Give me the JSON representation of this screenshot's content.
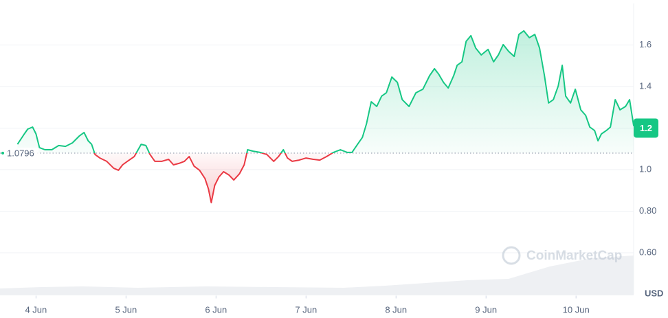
{
  "chart_data": {
    "type": "line",
    "x": [
      3.794,
      3.87,
      3.908,
      3.962,
      4.0,
      4.038,
      4.099,
      4.176,
      4.252,
      4.328,
      4.405,
      4.481,
      4.534,
      4.58,
      4.618,
      4.656,
      4.71,
      4.786,
      4.863,
      4.916,
      4.962,
      5.015,
      5.092,
      5.168,
      5.221,
      5.267,
      5.321,
      5.397,
      5.473,
      5.527,
      5.588,
      5.649,
      5.702,
      5.756,
      5.817,
      5.878,
      5.916,
      5.947,
      5.985,
      6.031,
      6.084,
      6.145,
      6.198,
      6.26,
      6.313,
      6.351,
      6.412,
      6.489,
      6.565,
      6.641,
      6.695,
      6.748,
      6.794,
      6.847,
      6.924,
      7.0,
      7.076,
      7.153,
      7.229,
      7.305,
      7.382,
      7.458,
      7.511,
      7.573,
      7.626,
      7.672,
      7.725,
      7.786,
      7.84,
      7.893,
      7.954,
      8.015,
      8.069,
      8.145,
      8.221,
      8.298,
      8.374,
      8.427,
      8.473,
      8.527,
      8.58,
      8.641,
      8.679,
      8.733,
      8.779,
      8.832,
      8.885,
      8.947,
      9.023,
      9.084,
      9.137,
      9.191,
      9.252,
      9.313,
      9.366,
      9.42,
      9.481,
      9.542,
      9.595,
      9.649,
      9.695,
      9.748,
      9.802,
      9.847,
      9.885,
      9.939,
      9.992,
      10.053,
      10.107,
      10.153,
      10.206,
      10.244,
      10.282,
      10.336,
      10.382,
      10.435,
      10.489,
      10.55,
      10.595,
      10.641
    ],
    "values": [
      1.122,
      1.172,
      1.195,
      1.205,
      1.172,
      1.106,
      1.096,
      1.096,
      1.116,
      1.112,
      1.129,
      1.162,
      1.179,
      1.139,
      1.122,
      1.073,
      1.056,
      1.04,
      1.007,
      0.997,
      1.023,
      1.04,
      1.063,
      1.122,
      1.116,
      1.073,
      1.04,
      1.04,
      1.05,
      1.023,
      1.03,
      1.04,
      1.063,
      1.017,
      0.997,
      0.957,
      0.907,
      0.841,
      0.924,
      0.964,
      0.99,
      0.974,
      0.95,
      0.98,
      1.023,
      1.096,
      1.089,
      1.083,
      1.073,
      1.04,
      1.063,
      1.096,
      1.056,
      1.04,
      1.046,
      1.056,
      1.05,
      1.046,
      1.063,
      1.083,
      1.096,
      1.083,
      1.083,
      1.122,
      1.155,
      1.221,
      1.327,
      1.304,
      1.354,
      1.37,
      1.446,
      1.42,
      1.337,
      1.304,
      1.37,
      1.387,
      1.453,
      1.486,
      1.46,
      1.42,
      1.393,
      1.453,
      1.502,
      1.519,
      1.618,
      1.645,
      1.585,
      1.552,
      1.579,
      1.519,
      1.552,
      1.602,
      1.569,
      1.545,
      1.651,
      1.668,
      1.635,
      1.651,
      1.585,
      1.453,
      1.321,
      1.337,
      1.403,
      1.502,
      1.354,
      1.321,
      1.387,
      1.288,
      1.261,
      1.205,
      1.188,
      1.139,
      1.172,
      1.188,
      1.205,
      1.337,
      1.288,
      1.304,
      1.337,
      1.21
    ],
    "colors": {
      "up": "#16c784",
      "down": "#ea3943"
    },
    "reference_price": 1.0796,
    "current_price": 1.2,
    "xlim": [
      3.6,
      10.64
    ],
    "xticks": [
      {
        "value": 4,
        "label": "4 Jun"
      },
      {
        "value": 5,
        "label": "5 Jun"
      },
      {
        "value": 6,
        "label": "6 Jun"
      },
      {
        "value": 7,
        "label": "7 Jun"
      },
      {
        "value": 8,
        "label": "8 Jun"
      },
      {
        "value": 9,
        "label": "9 Jun"
      },
      {
        "value": 10,
        "label": "10 Jun"
      }
    ],
    "ylim": [
      0.4,
      1.8
    ],
    "yticks": [
      {
        "value": 0.6,
        "label": "0.60"
      },
      {
        "value": 0.8,
        "label": "0.80"
      },
      {
        "value": 1,
        "label": "1.0"
      },
      1.2,
      1.4,
      1.6
    ],
    "grid": true,
    "y_axis_label": "USD",
    "watermark": "CoinMarketCap"
  }
}
